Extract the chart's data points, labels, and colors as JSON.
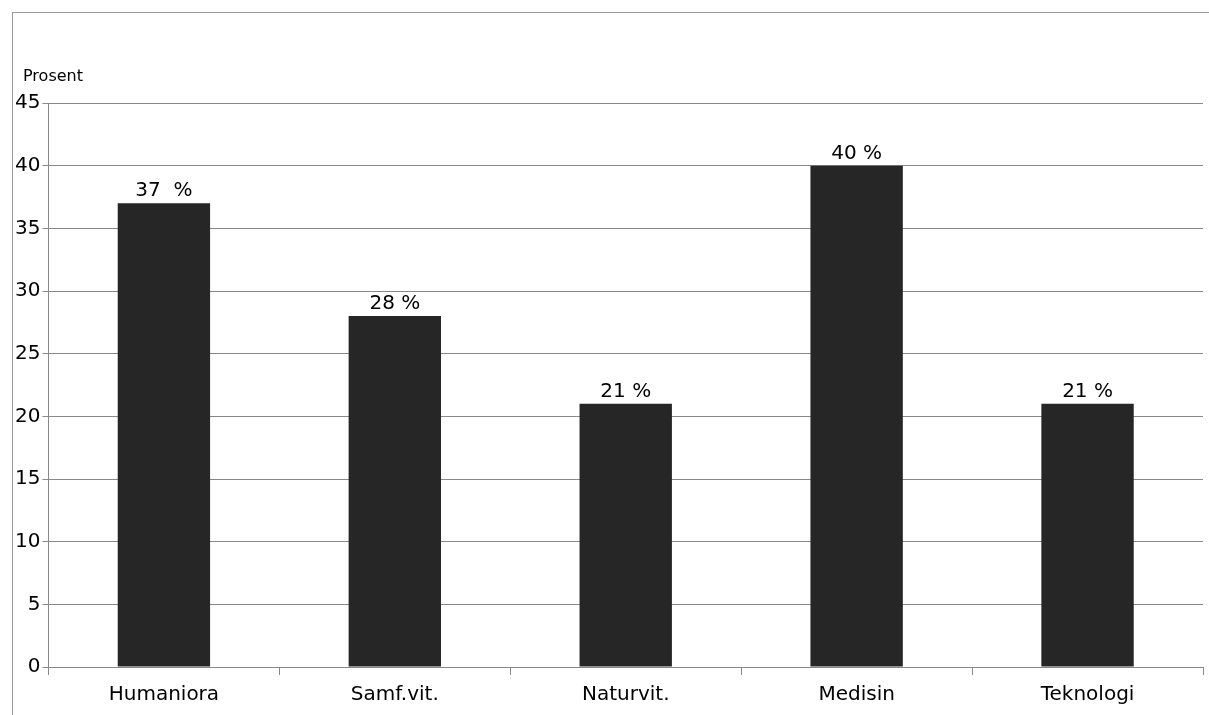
{
  "chart_data": {
    "type": "bar",
    "ylabel": "Prosent",
    "categories": [
      "Humaniora",
      "Samf.vit.",
      "Naturvit.",
      "Medisin",
      "Teknologi"
    ],
    "values": [
      37,
      28,
      21,
      40,
      21
    ],
    "color": "#262626",
    "value_labels": [
      "37  %",
      "28 %",
      "21 %",
      "40 %",
      "21 %"
    ],
    "ylim": [
      0,
      45
    ],
    "yticks": [
      0,
      5,
      10,
      15,
      20,
      25,
      30,
      35,
      40,
      45
    ],
    "grid": "y",
    "legend": false
  }
}
